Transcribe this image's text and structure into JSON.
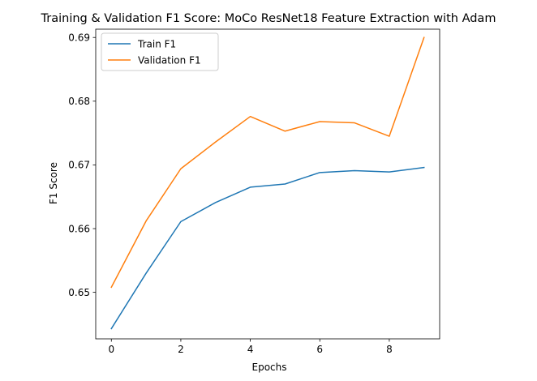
{
  "chart_data": {
    "type": "line",
    "title": "Training & Validation F1 Score: MoCo ResNet18 Feature Extraction with Adam",
    "xlabel": "Epochs",
    "ylabel": "F1 Score",
    "x": [
      0,
      1,
      2,
      3,
      4,
      5,
      6,
      7,
      8,
      9
    ],
    "xticks": [
      "0",
      "2",
      "4",
      "6",
      "8"
    ],
    "yticks": [
      "0.65",
      "0.66",
      "0.67",
      "0.68",
      "0.69"
    ],
    "xlim": [
      -0.45,
      9.45
    ],
    "ylim": [
      0.6427,
      0.6913
    ],
    "grid": false,
    "legend_position": "upper-left",
    "series": [
      {
        "name": "Train F1",
        "color": "#1f77b4",
        "values": [
          0.6443,
          0.653,
          0.6611,
          0.6641,
          0.6665,
          0.667,
          0.6688,
          0.6691,
          0.6689,
          0.6696
        ]
      },
      {
        "name": "Validation F1",
        "color": "#ff7f0e",
        "values": [
          0.6508,
          0.6612,
          0.6694,
          0.6736,
          0.6776,
          0.6753,
          0.6768,
          0.6766,
          0.6745,
          0.69
        ]
      }
    ]
  }
}
